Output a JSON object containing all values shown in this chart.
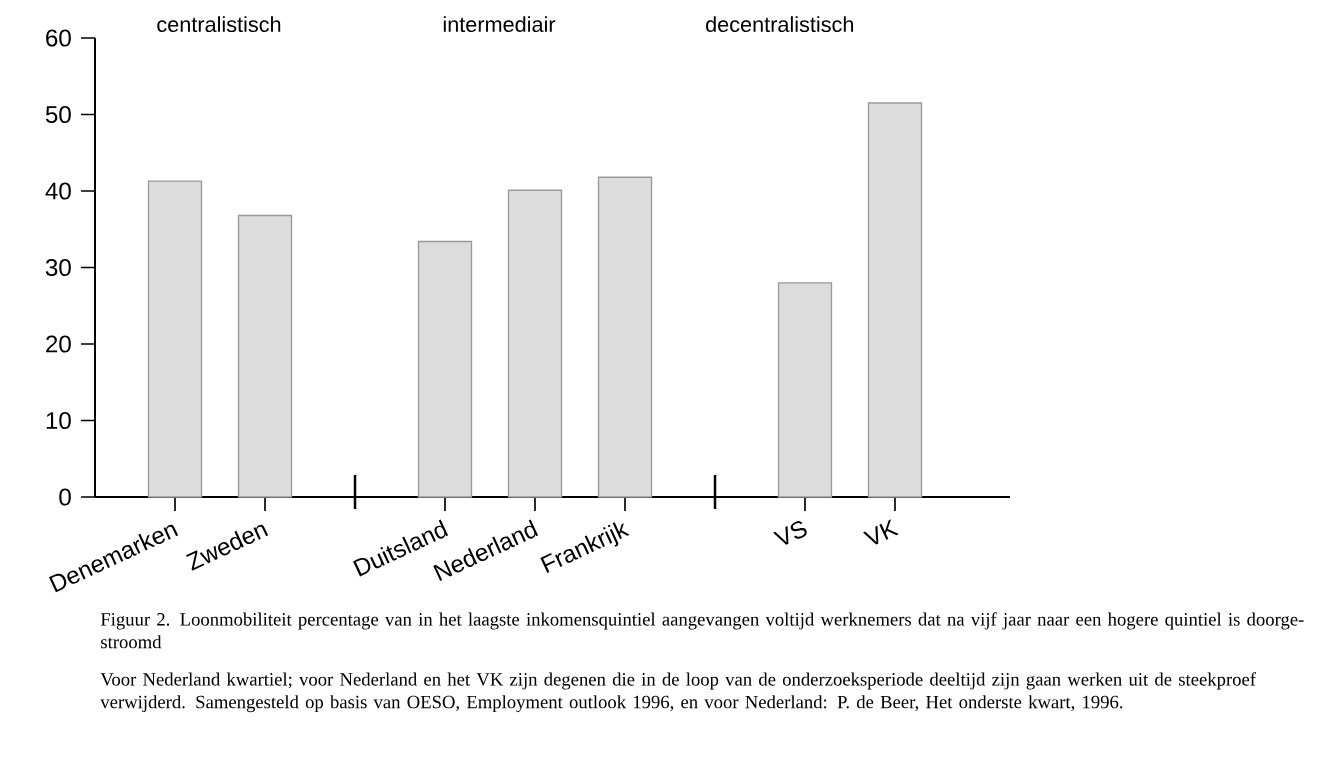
{
  "chart_data": {
    "type": "bar",
    "categories": [
      "Denemarken",
      "Zweden",
      null,
      "Duitsland",
      "Nederland",
      "Frankrijk",
      null,
      "VS",
      "VK"
    ],
    "values": [
      41.3,
      36.8,
      null,
      33.4,
      40.1,
      41.8,
      null,
      28.0,
      51.5
    ],
    "color": "#dcdcdc",
    "ylim": [
      0,
      60
    ],
    "yticks": [
      0,
      10,
      20,
      30,
      40,
      50,
      60
    ],
    "grid": false,
    "annotations": [
      "centralistisch",
      "intermediair",
      "decentralistisch",
      "Figuur 2. Loonmobiliteit percentage van in het laagste inkomensquintiel aangevangen voltijd werknemers dat na vijf jaar naar een hogere quintiel is doorge-stroomd",
      "Voor Nederland kwartiel; voor Nederland en het VK zijn degenen die in de loop van de onderzoeksperiode deeltijd zijn gaan werken uit de steekproef verwijderd. Samengesteld op basis van OESO, Employment outlook 1996, en voor Nederland: P. de Beer, Het onderste kwart, 1996."
    ]
  }
}
